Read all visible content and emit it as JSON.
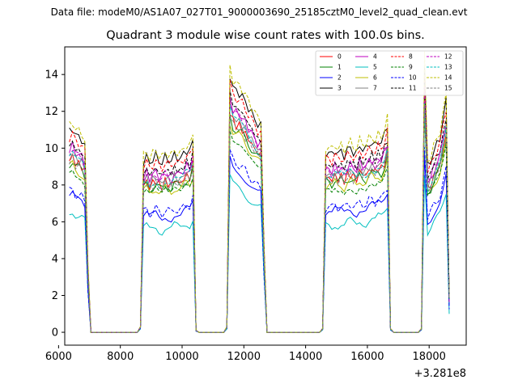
{
  "chart_data": {
    "type": "line",
    "suptitle": "Data file: modeM0/AS1A07_027T01_9000003690_25185cztM0_level2_quad_clean.evt",
    "title": "Quadrant 3 module wise count rates with 100.0s bins.",
    "xlabel": "",
    "ylabel": "",
    "x_offset_label": "+3.281e8",
    "xlim": [
      6200,
      19200
    ],
    "ylim": [
      -0.7,
      15.5
    ],
    "x_ticks": [
      6000,
      8000,
      10000,
      12000,
      14000,
      16000,
      18000
    ],
    "y_ticks": [
      0,
      2,
      4,
      6,
      8,
      10,
      12,
      14
    ],
    "x_tick_labels": [
      "6000",
      "8000",
      "10000",
      "12000",
      "14000",
      "16000",
      "18000"
    ],
    "y_tick_labels": [
      "0",
      "2",
      "4",
      "6",
      "8",
      "10",
      "12",
      "14"
    ],
    "legend_position": "top-right",
    "note": "Series values are read off the plot. Each series is the common per-bin envelope (segment levels) scaled by a per-module factor; the envelope is listed once in 'envelope' and each series gives its scale.",
    "envelope": {
      "x_start": 6350,
      "bin": 100,
      "values": [
        10.9,
        11.1,
        10.7,
        10.6,
        10.5,
        10.1,
        3.6,
        0.0,
        0.0,
        0.0,
        0.0,
        0.0,
        0.0,
        0.0,
        0.0,
        0.0,
        0.0,
        0.0,
        0.0,
        0.0,
        0.0,
        0.0,
        0.0,
        0.3,
        9.3,
        9.5,
        9.2,
        9.4,
        9.6,
        9.3,
        9.2,
        9.5,
        9.4,
        9.3,
        9.6,
        9.5,
        9.4,
        9.7,
        9.9,
        9.8,
        10.4,
        0.1,
        0.0,
        0.0,
        0.0,
        0.0,
        0.0,
        0.0,
        0.0,
        0.0,
        0.0,
        0.3,
        14.0,
        13.3,
        13.1,
        13.0,
        12.8,
        12.5,
        12.2,
        11.9,
        11.6,
        11.3,
        11.2,
        4.8,
        0.0,
        0.0,
        0.0,
        0.0,
        0.0,
        0.0,
        0.0,
        0.0,
        0.0,
        0.0,
        0.0,
        0.0,
        0.0,
        0.0,
        0.0,
        0.0,
        0.0,
        0.0,
        0.2,
        9.7,
        9.8,
        9.6,
        9.9,
        9.7,
        9.8,
        9.6,
        9.9,
        10.0,
        9.8,
        9.7,
        10.1,
        10.0,
        9.9,
        10.2,
        10.3,
        10.1,
        10.4,
        10.3,
        10.7,
        11.3,
        0.2,
        0.0,
        0.0,
        0.0,
        0.0,
        0.0,
        0.0,
        0.0,
        0.0,
        0.0,
        0.2,
        14.6,
        9.0,
        9.3,
        9.8,
        10.2,
        10.6,
        11.5,
        12.6,
        2.0
      ]
    },
    "series": [
      {
        "name": "0",
        "color": "#ff0000",
        "dash": false,
        "scale": 0.86
      },
      {
        "name": "1",
        "color": "#008000",
        "dash": false,
        "scale": 0.84
      },
      {
        "name": "2",
        "color": "#0000ff",
        "dash": false,
        "scale": 0.67
      },
      {
        "name": "3",
        "color": "#000000",
        "dash": false,
        "scale": 1.0
      },
      {
        "name": "4",
        "color": "#bf00bf",
        "dash": false,
        "scale": 0.91
      },
      {
        "name": "5",
        "color": "#00bfbf",
        "dash": false,
        "scale": 0.6
      },
      {
        "name": "6",
        "color": "#bfbf00",
        "dash": false,
        "scale": 0.82
      },
      {
        "name": "7",
        "color": "#808080",
        "dash": false,
        "scale": 0.88
      },
      {
        "name": "8",
        "color": "#ff0000",
        "dash": true,
        "scale": 0.97
      },
      {
        "name": "9",
        "color": "#008000",
        "dash": true,
        "scale": 0.8
      },
      {
        "name": "10",
        "color": "#0000ff",
        "dash": true,
        "scale": 0.7
      },
      {
        "name": "11",
        "color": "#000000",
        "dash": true,
        "scale": 0.93
      },
      {
        "name": "12",
        "color": "#bf00bf",
        "dash": true,
        "scale": 0.9
      },
      {
        "name": "13",
        "color": "#00bfbf",
        "dash": true,
        "scale": 0.87
      },
      {
        "name": "14",
        "color": "#bfbf00",
        "dash": true,
        "scale": 1.03
      },
      {
        "name": "15",
        "color": "#808080",
        "dash": true,
        "scale": 0.85
      }
    ]
  }
}
